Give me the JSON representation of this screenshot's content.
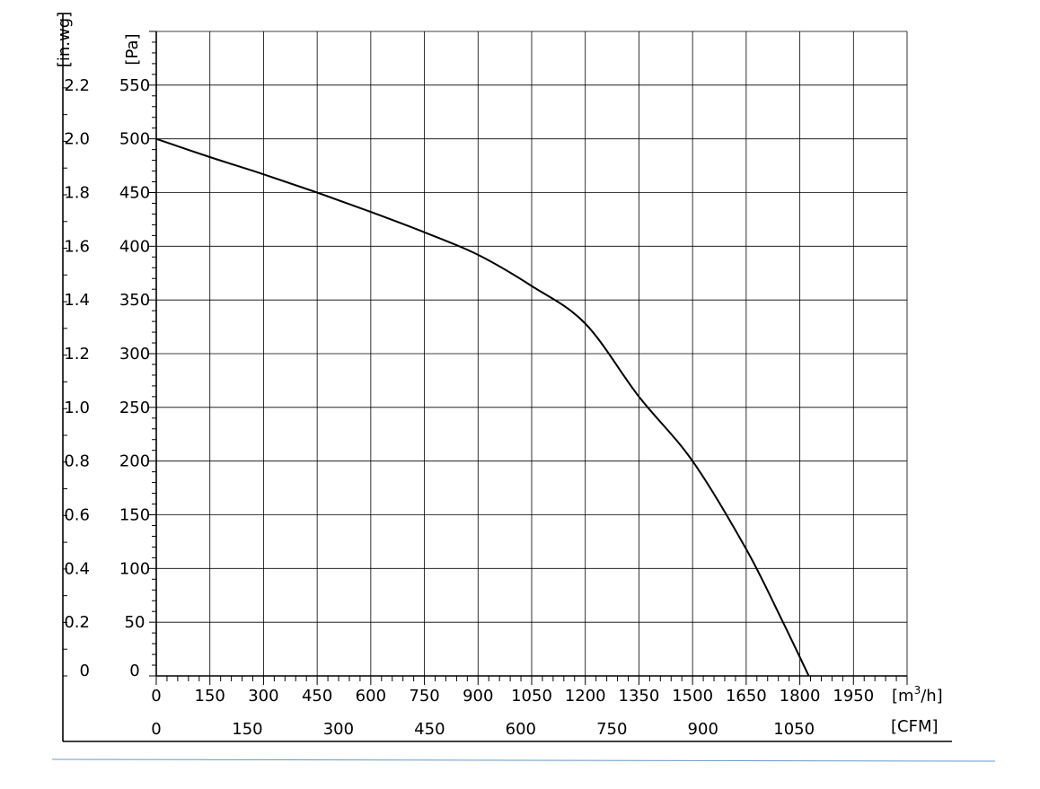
{
  "chart_data": {
    "type": "line",
    "title": "",
    "xlabel_primary": "[m³/h]",
    "xlabel_primary_base": "[m",
    "xlabel_primary_sup": "3",
    "xlabel_primary_tail": "/h]",
    "xlabel_secondary": "[CFM]",
    "ylabel_primary": "[Pa]",
    "ylabel_secondary": "[in.wg]",
    "x_ticks_m3h": [
      "0",
      "150",
      "300",
      "450",
      "600",
      "750",
      "900",
      "1050",
      "1200",
      "1350",
      "1500",
      "1650",
      "1800",
      "1950"
    ],
    "x_ticks_cfm": [
      "0",
      "150",
      "300",
      "450",
      "600",
      "750",
      "900",
      "1050"
    ],
    "y_ticks_pa": [
      "0",
      "50",
      "100",
      "150",
      "200",
      "250",
      "300",
      "350",
      "400",
      "450",
      "500",
      "550"
    ],
    "y_ticks_inwg": [
      "0",
      "0.2",
      "0.4",
      "0.6",
      "0.8",
      "1.0",
      "1.2",
      "1.4",
      "1.6",
      "1.8",
      "2.0",
      "2.2"
    ],
    "xlim": [
      0,
      2100
    ],
    "ylim": [
      0,
      600
    ],
    "grid": true,
    "series": [
      {
        "x": [
          0,
          150,
          300,
          450,
          600,
          750,
          900,
          1050,
          1200,
          1350,
          1500,
          1650,
          1750,
          1825
        ],
        "y": [
          500,
          483,
          467,
          450,
          432,
          413,
          392,
          363,
          328,
          260,
          200,
          118,
          52,
          0
        ]
      }
    ],
    "colors": {
      "curve": "#000000",
      "grid": "#000000",
      "baseline_rule": "#6699cc"
    }
  }
}
